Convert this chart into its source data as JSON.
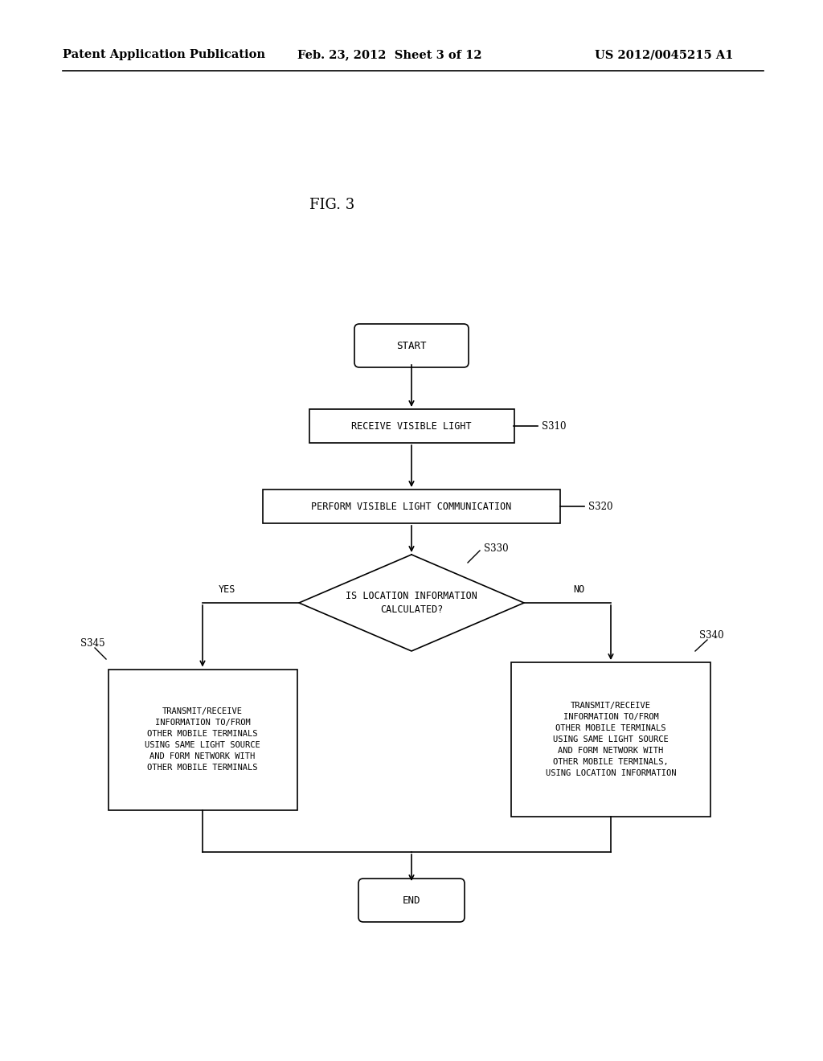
{
  "bg_color": "#ffffff",
  "header_left": "Patent Application Publication",
  "header_mid": "Feb. 23, 2012  Sheet 3 of 12",
  "header_right": "US 2012/0045215 A1",
  "fig_label": "FIG. 3",
  "start_text": "START",
  "end_text": "END",
  "s310_text": "RECEIVE VISIBLE LIGHT",
  "s310_label": "S310",
  "s320_text": "PERFORM VISIBLE LIGHT COMMUNICATION",
  "s320_label": "S320",
  "s330_text": "IS LOCATION INFORMATION\nCALCULATED?",
  "s330_label": "S330",
  "s345_text": "TRANSMIT/RECEIVE\nINFORMATION TO/FROM\nOTHER MOBILE TERMINALS\nUSING SAME LIGHT SOURCE\nAND FORM NETWORK WITH\nOTHER MOBILE TERMINALS",
  "s345_label": "S345",
  "s340_text": "TRANSMIT/RECEIVE\nINFORMATION TO/FROM\nOTHER MOBILE TERMINALS\nUSING SAME LIGHT SOURCE\nAND FORM NETWORK WITH\nOTHER MOBILE TERMINALS,\nUSING LOCATION INFORMATION",
  "s340_label": "S340",
  "yes_label": "YES",
  "no_label": "NO"
}
